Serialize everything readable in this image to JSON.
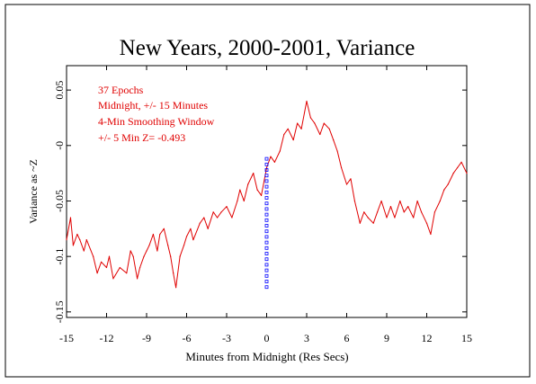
{
  "chart_data": {
    "type": "line",
    "title": "New Years, 2000-2001, Variance",
    "xlabel": "Minutes from Midnight (Res Secs)",
    "ylabel": "Variance as ~Z",
    "xlim": [
      -15,
      15
    ],
    "ylim": [
      -0.155,
      0.072
    ],
    "x_ticks": [
      -15,
      -12,
      -9,
      -6,
      -3,
      0,
      3,
      6,
      9,
      12,
      15
    ],
    "x_tick_labels": [
      "-15",
      "-12",
      "-9",
      "-6",
      "-3",
      "0",
      "3",
      "6",
      "9",
      "12",
      "15"
    ],
    "y_ticks": [
      0.05,
      0,
      -0.05,
      -0.1,
      -0.15
    ],
    "y_tick_labels": [
      "0.05",
      "-0",
      "-0.05",
      "-0.1",
      "-0.15"
    ],
    "grid": false,
    "annotations": [
      "37 Epochs",
      "Midnight, +/- 15 Minutes",
      "4-Min Smoothing Window",
      "+/- 5 Min Z= -0.493"
    ],
    "series": [
      {
        "color": "#e00000",
        "x": [
          -15,
          -14.7,
          -14.5,
          -14.2,
          -14,
          -13.7,
          -13.5,
          -13,
          -12.7,
          -12.4,
          -12,
          -11.8,
          -11.5,
          -11,
          -10.5,
          -10.2,
          -10,
          -9.7,
          -9.5,
          -9.2,
          -9,
          -8.8,
          -8.5,
          -8.2,
          -8,
          -7.7,
          -7.4,
          -7.2,
          -7,
          -6.8,
          -6.5,
          -6.2,
          -6,
          -5.7,
          -5.5,
          -5,
          -4.7,
          -4.4,
          -4,
          -3.7,
          -3.4,
          -3,
          -2.6,
          -2.2,
          -2,
          -1.7,
          -1.4,
          -1,
          -0.7,
          -0.4,
          0,
          0.3,
          0.6,
          1,
          1.3,
          1.6,
          2,
          2.3,
          2.6,
          3,
          3.3,
          3.6,
          4,
          4.3,
          4.7,
          5,
          5.3,
          5.6,
          6,
          6.3,
          6.6,
          7,
          7.3,
          7.6,
          8,
          8.3,
          8.6,
          9,
          9.3,
          9.6,
          10,
          10.3,
          10.6,
          11,
          11.3,
          11.6,
          12,
          12.3,
          12.6,
          13,
          13.3,
          13.6,
          14,
          14.3,
          14.6,
          15
        ],
        "values": [
          -0.085,
          -0.065,
          -0.09,
          -0.08,
          -0.085,
          -0.095,
          -0.085,
          -0.1,
          -0.115,
          -0.105,
          -0.11,
          -0.1,
          -0.12,
          -0.11,
          -0.115,
          -0.095,
          -0.1,
          -0.12,
          -0.11,
          -0.1,
          -0.095,
          -0.09,
          -0.08,
          -0.095,
          -0.08,
          -0.075,
          -0.09,
          -0.1,
          -0.115,
          -0.128,
          -0.1,
          -0.09,
          -0.082,
          -0.075,
          -0.085,
          -0.07,
          -0.065,
          -0.075,
          -0.06,
          -0.065,
          -0.06,
          -0.055,
          -0.065,
          -0.05,
          -0.04,
          -0.05,
          -0.035,
          -0.025,
          -0.04,
          -0.045,
          -0.02,
          -0.01,
          -0.015,
          -0.005,
          0.01,
          0.015,
          0.005,
          0.02,
          0.015,
          0.04,
          0.025,
          0.02,
          0.01,
          0.02,
          0.015,
          0.005,
          -0.005,
          -0.02,
          -0.035,
          -0.03,
          -0.05,
          -0.07,
          -0.06,
          -0.065,
          -0.07,
          -0.06,
          -0.05,
          -0.065,
          -0.055,
          -0.065,
          -0.05,
          -0.06,
          -0.055,
          -0.065,
          -0.05,
          -0.06,
          -0.07,
          -0.08,
          -0.06,
          -0.05,
          -0.04,
          -0.035,
          -0.025,
          -0.02,
          -0.015,
          -0.025
        ]
      },
      {
        "color": "#0000ff",
        "x": [
          0,
          0
        ],
        "values": [
          -0.13,
          -0.012
        ]
      }
    ]
  }
}
